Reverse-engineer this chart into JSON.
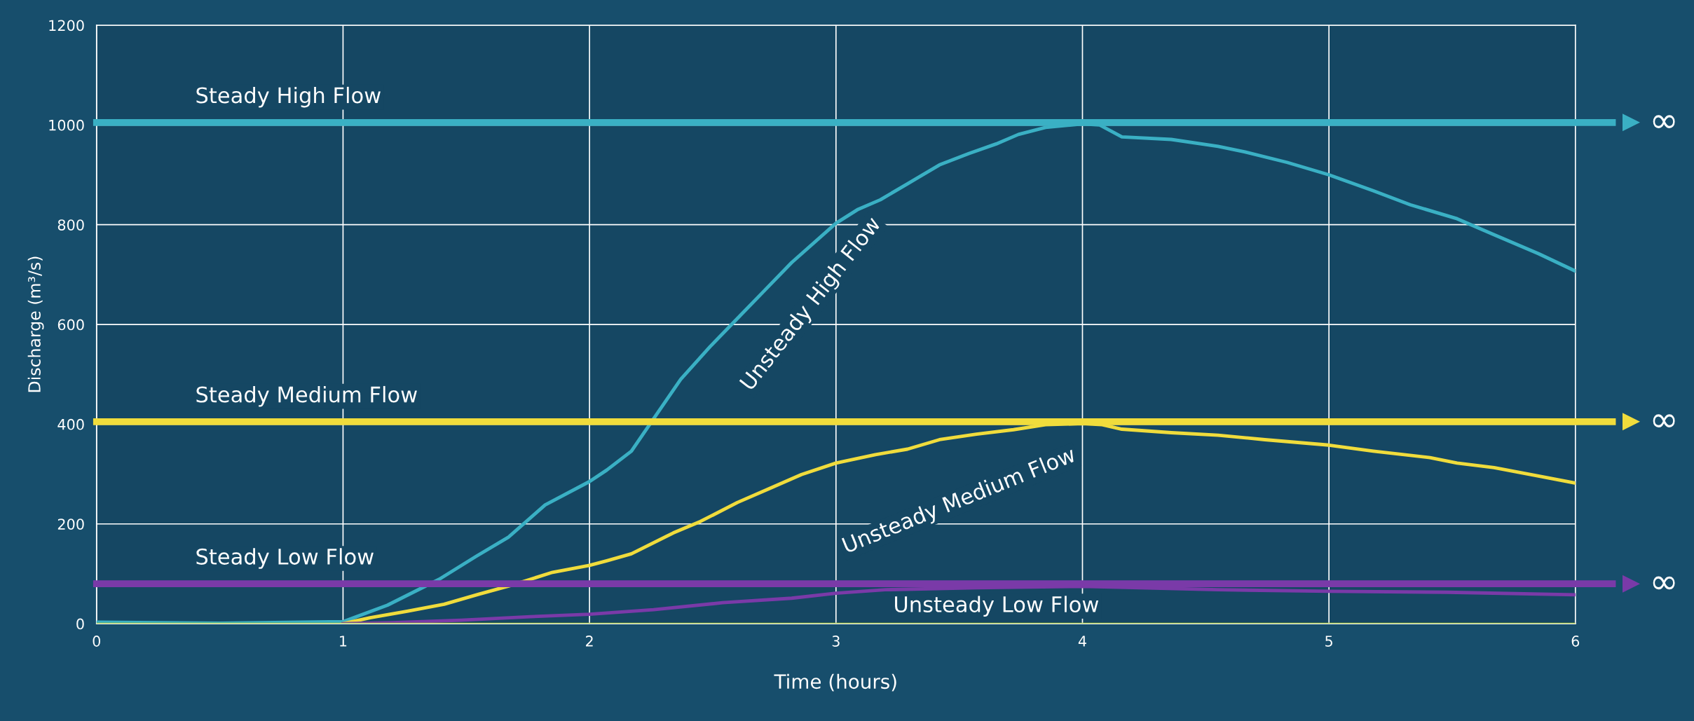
{
  "chart_data": {
    "type": "line",
    "xlabel": "Time (hours)",
    "ylabel": "Discharge (m³/s)",
    "xlim": [
      0,
      6
    ],
    "xticks": [
      0,
      1,
      2,
      3,
      4,
      5,
      6
    ],
    "ylim": [
      0,
      1200
    ],
    "yticks": [
      0,
      200,
      400,
      600,
      800,
      1000,
      1200
    ],
    "grid": true,
    "series": [
      {
        "name": "Unsteady High Flow",
        "color": "#3ab0c4",
        "x": [
          0,
          0.5,
          1.0,
          1.18,
          1.39,
          1.54,
          1.67,
          1.82,
          2.0,
          2.07,
          2.17,
          2.26,
          2.37,
          2.49,
          2.6,
          2.71,
          2.82,
          3.0,
          3.09,
          3.18,
          3.29,
          3.42,
          3.54,
          3.65,
          3.74,
          3.85,
          4.0,
          4.07,
          4.16,
          4.36,
          4.55,
          4.66,
          4.83,
          5.0,
          5.18,
          5.33,
          5.52,
          5.67,
          5.85,
          6.0
        ],
        "values": [
          3,
          1,
          4,
          37,
          89,
          135,
          173,
          238,
          285,
          308,
          346,
          411,
          490,
          556,
          612,
          668,
          724,
          803,
          831,
          850,
          882,
          920,
          943,
          962,
          981,
          995,
          1002,
          1000,
          976,
          971,
          957,
          946,
          925,
          900,
          868,
          840,
          812,
          780,
          742,
          707
        ]
      },
      {
        "name": "Unsteady Medium Flow",
        "color": "#f0dc3c",
        "x": [
          1.0,
          1.11,
          1.26,
          1.41,
          1.55,
          1.69,
          1.85,
          2.0,
          2.07,
          2.17,
          2.34,
          2.45,
          2.6,
          2.73,
          2.86,
          3.0,
          3.16,
          3.29,
          3.42,
          3.57,
          3.72,
          3.85,
          4.0,
          4.08,
          4.16,
          4.36,
          4.55,
          4.74,
          5.0,
          5.18,
          5.41,
          5.52,
          5.67,
          5.85,
          6.0
        ],
        "values": [
          0,
          12,
          25,
          39,
          59,
          78,
          103,
          117,
          126,
          140,
          182,
          205,
          243,
          271,
          299,
          322,
          339,
          350,
          369,
          380,
          389,
          399,
          401,
          399,
          390,
          383,
          378,
          369,
          358,
          346,
          333,
          322,
          313,
          296,
          282
        ]
      },
      {
        "name": "Unsteady Low Flow",
        "color": "#7a3aa8",
        "x": [
          1.0,
          1.2,
          1.48,
          1.76,
          2.0,
          2.26,
          2.54,
          2.82,
          3.0,
          3.2,
          3.57,
          4.0,
          4.55,
          5.0,
          5.48,
          6.0
        ],
        "values": [
          0,
          2,
          7,
          14,
          19,
          28,
          42,
          51,
          61,
          68,
          72,
          75,
          68,
          65,
          63,
          58
        ]
      },
      {
        "color": "#a8c84a",
        "x": [
          0,
          6
        ],
        "values": [
          0,
          0
        ]
      }
    ],
    "ref_lines": [
      {
        "axis": "y",
        "value": 1005,
        "label": "Steady High Flow",
        "color": "#3ab0c4"
      },
      {
        "axis": "y",
        "value": 405,
        "label": "Steady Medium Flow",
        "color": "#f0dc3c"
      },
      {
        "axis": "y",
        "value": 80,
        "label": "Steady Low Flow",
        "color": "#7a3aa8"
      }
    ],
    "annotations": [
      "∞",
      "∞",
      "∞"
    ]
  }
}
